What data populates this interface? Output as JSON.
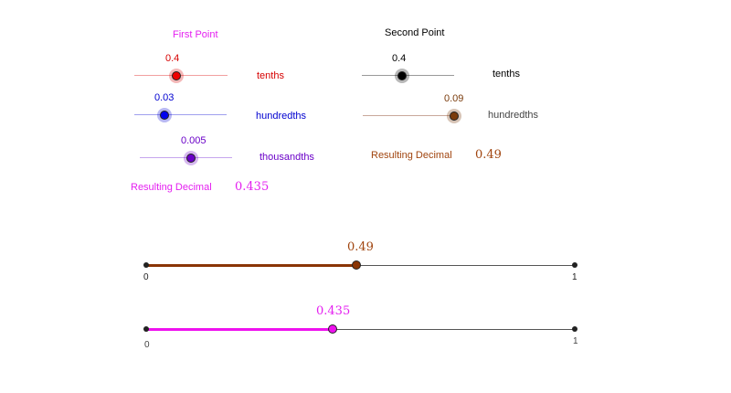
{
  "first_point": {
    "header": "First Point",
    "header_color": "#e41ff0",
    "tenths": {
      "value": "0.4",
      "fraction": 0.4,
      "label": "tenths",
      "color": "#d60000",
      "track": "#f2a0a0"
    },
    "hundredths": {
      "value": "0.03",
      "fraction": 0.3,
      "label": "hundredths",
      "color": "#0000d0",
      "track": "#a0a0ee"
    },
    "thousandths": {
      "value": "0.005",
      "fraction": 0.5,
      "label": "thousandths",
      "color": "#6a00c8",
      "track": "#c6a6ee"
    },
    "result_label": "Resulting Decimal",
    "result_value": "0.435",
    "result_color": "#e41ff0"
  },
  "second_point": {
    "header": "Second Point",
    "tenths": {
      "value": "0.4",
      "fraction": 0.4,
      "label": "tenths",
      "color": "#000000",
      "track": "#999999"
    },
    "hundredths": {
      "value": "0.09",
      "fraction": 0.9,
      "label": "hundredths",
      "color": "#7a3b0c",
      "track": "#c9a89a"
    },
    "result_label": "Resulting Decimal",
    "result_value": "0.49",
    "result_color": "#a0440e"
  },
  "number_lines": [
    {
      "start": "0",
      "end": "1",
      "point_label": "0.49",
      "point_value": 0.49,
      "color": "#8a3505",
      "label_color": "#a0440e"
    },
    {
      "start": "0",
      "end": "1",
      "point_label": "0.435",
      "point_value": 0.435,
      "color": "#ee11ee",
      "label_color": "#e41ff0"
    }
  ]
}
